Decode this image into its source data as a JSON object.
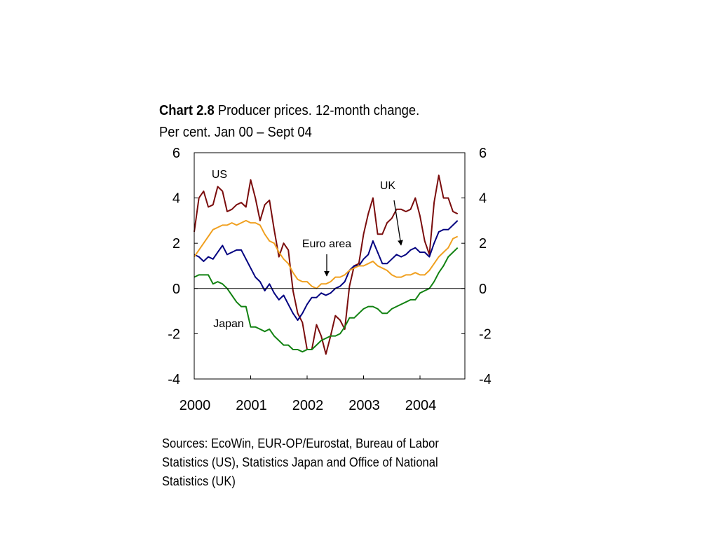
{
  "title": {
    "label": "Chart 2.8",
    "text": "Producer prices. 12-month change.",
    "line2": "Per cent. Jan 00 – Sept 04"
  },
  "sources": "Sources: EcoWin, EUR-OP/Eurostat, Bureau of Labor Statistics (US), Statistics Japan and Office of National Statistics (UK)",
  "chart_data": {
    "type": "line",
    "title": "Chart 2.8 Producer prices. 12-month change.",
    "subtitle": "Per cent. Jan 00 – Sept 04",
    "x_start": "2000-01",
    "x_end": "2004-09",
    "x_ticks": [
      "2000",
      "2001",
      "2002",
      "2003",
      "2004"
    ],
    "ylim": [
      -4,
      6
    ],
    "y_ticks": [
      "6",
      "4",
      "2",
      "0",
      "-2",
      "-4"
    ],
    "y_ticks_right": [
      "6",
      "4",
      "2",
      "0",
      "-2",
      "-4"
    ],
    "grid": false,
    "zero_line": true,
    "annotations": [
      {
        "text": "US",
        "series": "US"
      },
      {
        "text": "UK",
        "series": "UK",
        "arrow": true
      },
      {
        "text": "Euro area",
        "series": "Euro area",
        "arrow": true
      },
      {
        "text": "Japan",
        "series": "Japan"
      }
    ],
    "series": [
      {
        "name": "US",
        "color": "#7a0c0c",
        "values": [
          2.5,
          4.0,
          4.3,
          3.6,
          3.7,
          4.5,
          4.3,
          3.4,
          3.5,
          3.7,
          3.8,
          3.6,
          4.8,
          4.0,
          3.0,
          3.7,
          3.9,
          2.6,
          1.4,
          2.0,
          1.7,
          -0.1,
          -1.1,
          -1.5,
          -2.7,
          -2.7,
          -1.6,
          -2.1,
          -2.9,
          -2.1,
          -1.2,
          -1.4,
          -1.8,
          0.1,
          1.0,
          1.1,
          2.4,
          3.3,
          4.0,
          2.4,
          2.4,
          2.9,
          3.1,
          3.5,
          3.5,
          3.4,
          3.5,
          4.0,
          3.2,
          2.1,
          1.5,
          3.8,
          5.0,
          4.0,
          4.0,
          3.4,
          3.3
        ]
      },
      {
        "name": "UK",
        "color": "#000080",
        "values": [
          1.5,
          1.4,
          1.2,
          1.4,
          1.3,
          1.6,
          1.9,
          1.5,
          1.6,
          1.7,
          1.7,
          1.3,
          0.9,
          0.5,
          0.3,
          -0.1,
          0.2,
          -0.2,
          -0.5,
          -0.3,
          -0.7,
          -1.1,
          -1.4,
          -1.1,
          -0.7,
          -0.4,
          -0.4,
          -0.2,
          -0.3,
          -0.2,
          0.0,
          0.1,
          0.3,
          0.8,
          1.0,
          1.0,
          1.3,
          1.5,
          2.1,
          1.6,
          1.1,
          1.1,
          1.3,
          1.5,
          1.4,
          1.5,
          1.7,
          1.8,
          1.6,
          1.6,
          1.4,
          2.0,
          2.5,
          2.6,
          2.6,
          2.8,
          3.0
        ]
      },
      {
        "name": "Euro area",
        "color": "#f0a020",
        "values": [
          1.4,
          1.7,
          2.0,
          2.3,
          2.6,
          2.7,
          2.8,
          2.8,
          2.9,
          2.8,
          2.9,
          3.0,
          2.9,
          2.9,
          2.8,
          2.4,
          2.1,
          2.0,
          1.6,
          1.3,
          1.1,
          0.7,
          0.4,
          0.3,
          0.3,
          0.1,
          0.0,
          0.2,
          0.2,
          0.3,
          0.5,
          0.5,
          0.6,
          0.8,
          0.9,
          1.0,
          1.0,
          1.1,
          1.2,
          1.0,
          0.9,
          0.8,
          0.6,
          0.5,
          0.5,
          0.6,
          0.6,
          0.7,
          0.6,
          0.6,
          0.8,
          1.1,
          1.4,
          1.6,
          1.8,
          2.2,
          2.3
        ]
      },
      {
        "name": "Japan",
        "color": "#128212",
        "values": [
          0.5,
          0.6,
          0.6,
          0.6,
          0.2,
          0.3,
          0.2,
          0.0,
          -0.3,
          -0.6,
          -0.8,
          -0.8,
          -1.7,
          -1.7,
          -1.8,
          -1.9,
          -1.8,
          -2.1,
          -2.3,
          -2.5,
          -2.5,
          -2.7,
          -2.7,
          -2.8,
          -2.7,
          -2.7,
          -2.5,
          -2.3,
          -2.2,
          -2.1,
          -2.1,
          -2.0,
          -1.7,
          -1.3,
          -1.3,
          -1.1,
          -0.9,
          -0.8,
          -0.8,
          -0.9,
          -1.1,
          -1.1,
          -0.9,
          -0.8,
          -0.7,
          -0.6,
          -0.5,
          -0.5,
          -0.2,
          -0.1,
          0.0,
          0.3,
          0.7,
          1.0,
          1.4,
          1.6,
          1.8
        ]
      }
    ]
  }
}
